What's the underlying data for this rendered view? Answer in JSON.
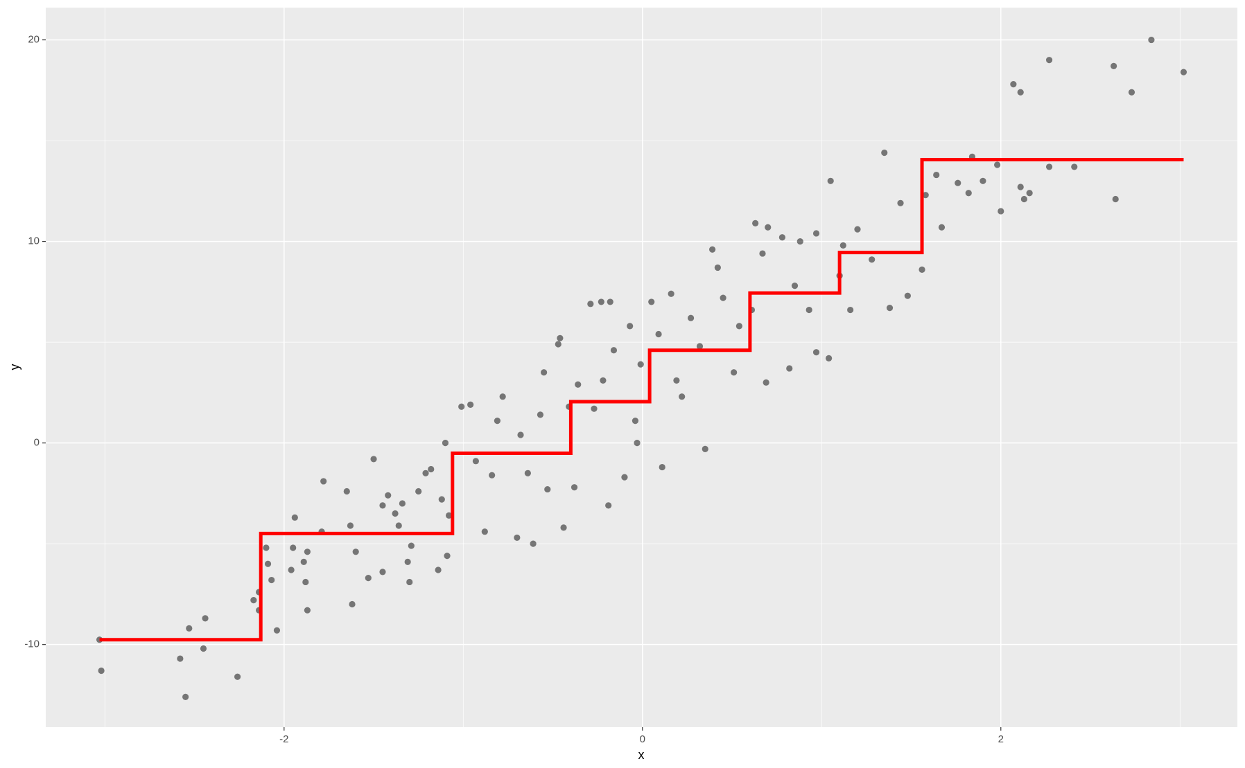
{
  "chart_data": {
    "type": "scatter",
    "x_label": "x",
    "y_label": "y",
    "xlim": [
      -3.33,
      3.32
    ],
    "ylim": [
      -14.1,
      21.6
    ],
    "xticks": [
      -2,
      0,
      2
    ],
    "yticks": [
      -10,
      0,
      10,
      20
    ],
    "xminor": [
      -3,
      -1,
      1,
      3
    ],
    "yminor": [
      -5,
      5,
      15
    ],
    "grid": true,
    "color": "#000000",
    "opacity": 0.5,
    "x": [
      -3.03,
      -3.02,
      -2.58,
      -2.55,
      -2.53,
      -2.45,
      -2.44,
      -2.26,
      -2.17,
      -2.14,
      -2.14,
      -2.1,
      -2.09,
      -2.07,
      -2.04,
      -1.96,
      -1.94,
      -1.95,
      -1.89,
      -1.87,
      -1.87,
      -1.88,
      -1.78,
      -1.79,
      -1.65,
      -1.62,
      -1.63,
      -1.6,
      -1.53,
      -1.5,
      -1.45,
      -1.45,
      -1.42,
      -1.38,
      -1.36,
      -1.34,
      -1.31,
      -1.29,
      -1.3,
      -1.25,
      -1.21,
      -1.18,
      -1.14,
      -1.12,
      -1.1,
      -1.09,
      -1.08,
      -1.01,
      -0.96,
      -0.93,
      -0.88,
      -0.84,
      -0.81,
      -0.78,
      -0.7,
      -0.68,
      -0.64,
      -0.61,
      -0.57,
      -0.55,
      -0.53,
      -0.47,
      -0.46,
      -0.44,
      -0.41,
      -0.38,
      -0.36,
      -0.29,
      -0.23,
      -0.18,
      -0.19,
      -0.27,
      -0.22,
      -0.16,
      -0.1,
      -0.07,
      -0.04,
      -0.01,
      -0.03,
      0.05,
      0.09,
      0.11,
      0.16,
      0.19,
      0.22,
      0.27,
      0.32,
      0.35,
      0.39,
      0.42,
      0.45,
      0.51,
      0.54,
      0.61,
      0.63,
      0.67,
      0.7,
      0.69,
      0.78,
      0.82,
      0.85,
      0.88,
      0.93,
      0.97,
      0.97,
      1.04,
      1.05,
      1.1,
      1.12,
      1.16,
      1.2,
      1.28,
      1.35,
      1.38,
      1.44,
      1.48,
      1.56,
      1.58,
      1.67,
      1.64,
      1.76,
      1.82,
      1.84,
      1.9,
      1.98,
      2.0,
      2.07,
      2.11,
      2.11,
      2.13,
      2.16,
      2.27,
      2.27,
      2.41,
      2.63,
      2.64,
      2.73,
      2.84,
      3.02
    ],
    "values": [
      -9.76,
      -11.3,
      -10.7,
      -12.6,
      -9.2,
      -10.2,
      -8.7,
      -11.6,
      -7.8,
      -7.4,
      -8.3,
      -5.2,
      -6.0,
      -6.8,
      -9.3,
      -6.3,
      -3.7,
      -5.2,
      -5.9,
      -5.4,
      -8.3,
      -6.9,
      -1.9,
      -4.4,
      -2.4,
      -8.0,
      -4.1,
      -5.4,
      -6.7,
      -0.8,
      -3.1,
      -6.4,
      -2.6,
      -3.5,
      -4.1,
      -3.0,
      -5.9,
      -5.1,
      -6.9,
      -2.4,
      -1.5,
      -1.3,
      -6.3,
      -2.8,
      0.0,
      -5.6,
      -3.6,
      1.8,
      1.9,
      -0.9,
      -4.4,
      -1.6,
      1.1,
      2.3,
      -4.7,
      0.4,
      -1.5,
      -5.0,
      1.4,
      3.5,
      -2.3,
      4.9,
      5.2,
      -4.2,
      1.8,
      -2.2,
      2.9,
      6.9,
      7.0,
      7.0,
      -3.1,
      1.7,
      3.1,
      4.6,
      -1.7,
      5.8,
      1.1,
      3.9,
      0.0,
      7.0,
      5.4,
      -1.2,
      7.4,
      3.1,
      2.3,
      6.2,
      4.8,
      -0.3,
      9.6,
      8.7,
      7.2,
      3.5,
      5.8,
      6.6,
      10.9,
      9.4,
      10.7,
      3.0,
      10.2,
      3.7,
      7.8,
      10.0,
      6.6,
      10.4,
      4.5,
      4.2,
      13.0,
      8.3,
      9.8,
      6.6,
      10.6,
      9.1,
      14.4,
      6.7,
      11.9,
      7.3,
      8.6,
      12.3,
      10.7,
      13.3,
      12.9,
      12.4,
      14.2,
      13.0,
      13.8,
      11.5,
      17.8,
      17.4,
      12.7,
      12.1,
      12.4,
      19.0,
      13.7,
      13.7,
      18.7,
      12.1,
      17.4,
      20.0,
      18.4
    ],
    "step": {
      "type": "step",
      "color": "#ff0000",
      "x": [
        -3.03,
        -2.13,
        -1.06,
        -0.4,
        0.04,
        0.6,
        1.1,
        1.56,
        3.02
      ],
      "values": [
        -9.76,
        -4.49,
        -0.51,
        2.05,
        4.6,
        7.44,
        9.45,
        14.06,
        14.06
      ]
    }
  }
}
